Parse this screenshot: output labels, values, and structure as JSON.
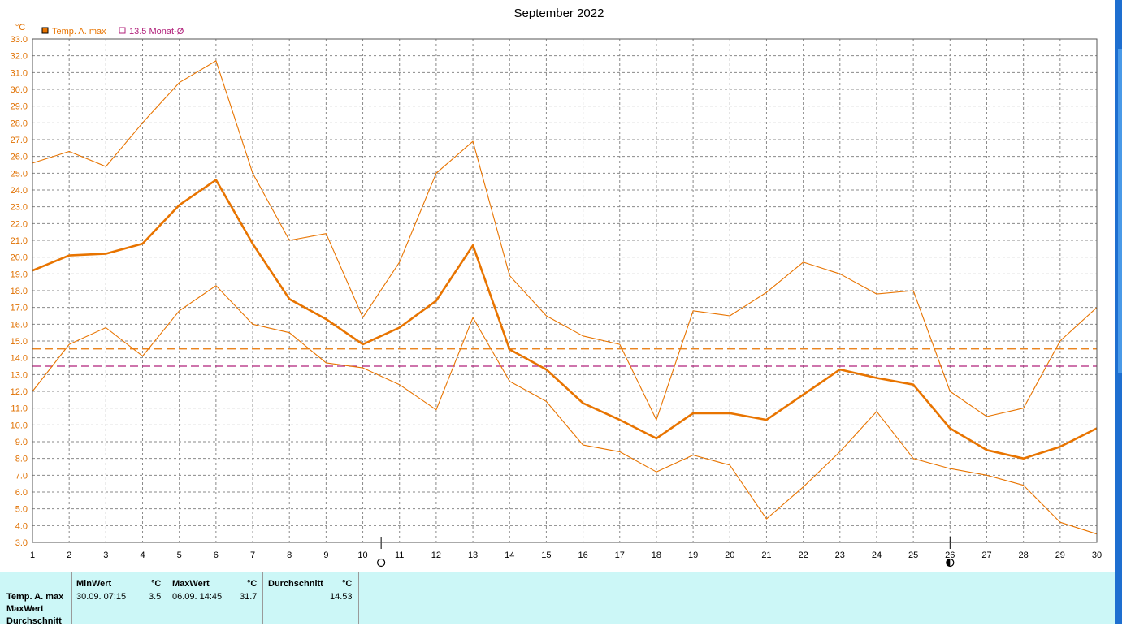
{
  "chart_data": {
    "type": "line",
    "title": "September 2022",
    "y_unit": "°C",
    "ylim": [
      3.0,
      33.0
    ],
    "y_ticks": [
      "3.0",
      "4.0",
      "5.0",
      "6.0",
      "7.0",
      "8.0",
      "9.0",
      "10.0",
      "11.0",
      "12.0",
      "13.0",
      "14.0",
      "15.0",
      "16.0",
      "17.0",
      "18.0",
      "19.0",
      "20.0",
      "21.0",
      "22.0",
      "23.0",
      "24.0",
      "25.0",
      "26.0",
      "27.0",
      "28.0",
      "29.0",
      "30.0",
      "31.0",
      "32.0",
      "33.0"
    ],
    "x": [
      1,
      2,
      3,
      4,
      5,
      6,
      7,
      8,
      9,
      10,
      11,
      12,
      13,
      14,
      15,
      16,
      17,
      18,
      19,
      20,
      21,
      22,
      23,
      24,
      25,
      26,
      27,
      28,
      29,
      30
    ],
    "x_labels": [
      "1",
      "2",
      "3",
      "4",
      "5",
      "6",
      "7",
      "8",
      "9",
      "10",
      "11",
      "12",
      "13",
      "14",
      "15",
      "16",
      "17",
      "18",
      "19",
      "20",
      "21",
      "22",
      "23",
      "24",
      "25",
      "26",
      "27",
      "28",
      "29",
      "30"
    ],
    "grid": true,
    "legend_position": "top-left",
    "series": [
      {
        "name": "Temp. A. max",
        "color": "#e87400",
        "width": "thick",
        "values": [
          19.2,
          20.1,
          20.2,
          20.8,
          23.1,
          24.6,
          20.8,
          17.5,
          16.3,
          14.8,
          15.8,
          17.4,
          20.7,
          14.5,
          13.3,
          11.3,
          10.3,
          9.2,
          10.7,
          10.7,
          10.3,
          11.8,
          13.3,
          12.8,
          12.4,
          9.8,
          8.5,
          8.0,
          8.7,
          9.8
        ]
      },
      {
        "color": "#e87400",
        "width": "thin",
        "values": [
          25.6,
          26.3,
          25.4,
          28.0,
          30.4,
          31.7,
          25.0,
          21.0,
          21.4,
          16.4,
          19.7,
          25.0,
          26.9,
          18.9,
          16.5,
          15.3,
          14.8,
          10.3,
          16.8,
          16.5,
          17.9,
          19.7,
          19.0,
          17.8,
          18.0,
          12.0,
          10.5,
          11.0,
          15.0,
          17.0
        ]
      },
      {
        "color": "#e87400",
        "width": "thin",
        "values": [
          12.0,
          14.8,
          15.8,
          14.1,
          16.8,
          18.3,
          16.0,
          15.5,
          13.7,
          13.4,
          12.4,
          10.9,
          16.4,
          12.6,
          11.4,
          8.8,
          8.4,
          7.2,
          8.2,
          7.6,
          4.4,
          6.3,
          8.4,
          10.8,
          8.0,
          7.4,
          7.0,
          6.4,
          4.2,
          3.5
        ]
      }
    ],
    "reference_lines": [
      {
        "value": 14.53,
        "color": "#e87400",
        "style": "dashed"
      },
      {
        "value": 13.5,
        "color": "#b0207a",
        "style": "dashed",
        "label": "13.5 Monat-Ø"
      }
    ],
    "moon_markers": [
      {
        "x": 10.5,
        "phase": "full-moon"
      },
      {
        "x": 26,
        "phase": "new-moon"
      }
    ]
  },
  "legend": {
    "series_label": "Temp. A. max",
    "series_color": "#e87400",
    "avg_label": "13.5 Monat-Ø",
    "avg_color": "#b0207a"
  },
  "stats": {
    "row_labels": [
      "Temp. A. max",
      "MaxWert",
      "Durchschnitt"
    ],
    "min_header": "MinWert",
    "max_header": "MaxWert",
    "avg_header": "Durchschnitt",
    "unit": "°C",
    "min_date": "30.09.  07:15",
    "min_value": "3.5",
    "max_date": "06.09.  14:45",
    "max_value": "31.7",
    "avg_value": "14.53"
  }
}
